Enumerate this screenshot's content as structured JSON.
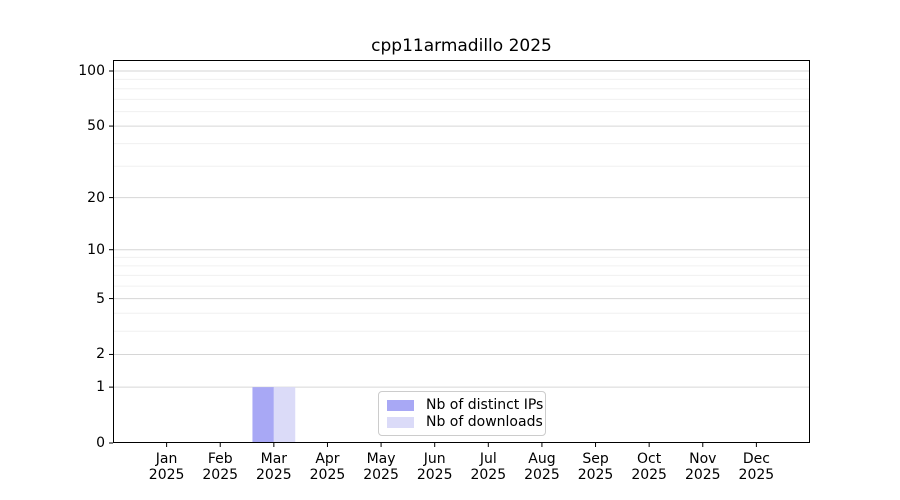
{
  "chart_data": {
    "type": "bar",
    "title": "cpp11armadillo 2025",
    "categories": [
      "Jan",
      "Feb",
      "Mar",
      "Apr",
      "May",
      "Jun",
      "Jul",
      "Aug",
      "Sep",
      "Oct",
      "Nov",
      "Dec"
    ],
    "year_label": "2025",
    "series": [
      {
        "name": "Nb of distinct IPs",
        "color": "#a8a8f5",
        "values": [
          0,
          0,
          1,
          0,
          0,
          0,
          0,
          0,
          0,
          0,
          0,
          0
        ]
      },
      {
        "name": "Nb of downloads",
        "color": "#dbdbf8",
        "values": [
          0,
          0,
          1,
          0,
          0,
          0,
          0,
          0,
          0,
          0,
          0,
          0
        ]
      }
    ],
    "y_axis": {
      "scale": "log1p",
      "major_ticks": [
        0,
        1,
        2,
        5,
        10,
        20,
        50,
        100
      ],
      "minor_gridlines": [
        3,
        4,
        6,
        7,
        8,
        9,
        30,
        40,
        60,
        70,
        80,
        90
      ],
      "top_value": 115
    },
    "grid": true,
    "legend_position": "lower center",
    "colors": {
      "major_grid": "#d6d6d6",
      "minor_grid": "#f0f0f0",
      "axis": "#000000",
      "background": "#ffffff"
    }
  }
}
